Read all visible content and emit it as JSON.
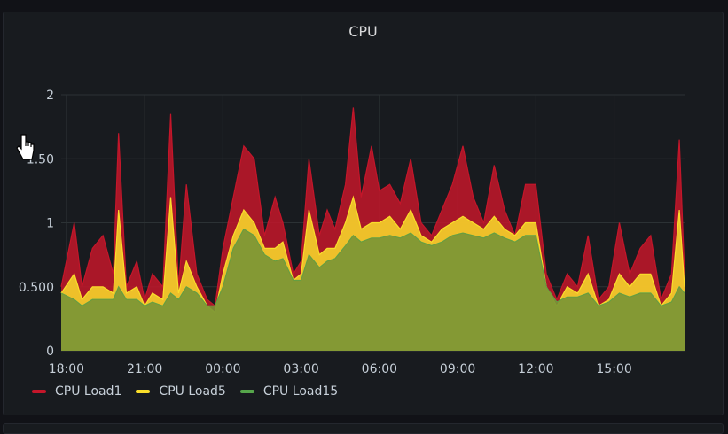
{
  "panel": {
    "title": "CPU"
  },
  "legend": [
    {
      "label": "CPU Load1",
      "color": "#c4162a"
    },
    {
      "label": "CPU Load5",
      "color": "#fade2a"
    },
    {
      "label": "CPU Load15",
      "color": "#56a64b"
    }
  ],
  "chart_data": {
    "type": "area",
    "title": "CPU",
    "xlabel": "",
    "ylabel": "",
    "x_ticks": [
      "18:00",
      "21:00",
      "00:00",
      "03:00",
      "06:00",
      "09:00",
      "12:00",
      "15:00"
    ],
    "y_ticks": [
      "0",
      "0.500",
      "1",
      "1.50",
      "2"
    ],
    "ylim": [
      0,
      2
    ],
    "x_range_hours": [
      -0.2,
      23.7
    ],
    "grid": true,
    "legend_position": "bottom-left",
    "series": [
      {
        "name": "CPU Load1",
        "color": "#c4162a",
        "x_hours": [
          -0.2,
          0.3,
          0.6,
          1.0,
          1.4,
          1.8,
          2.0,
          2.3,
          2.7,
          3.0,
          3.3,
          3.7,
          4.0,
          4.3,
          4.6,
          5.0,
          5.4,
          5.7,
          6.0,
          6.4,
          6.8,
          7.2,
          7.6,
          8.0,
          8.3,
          8.7,
          9.0,
          9.3,
          9.7,
          10.0,
          10.3,
          10.7,
          11.0,
          11.3,
          11.7,
          12.0,
          12.4,
          12.8,
          13.2,
          13.6,
          14.0,
          14.4,
          14.8,
          15.2,
          15.6,
          16.0,
          16.4,
          16.8,
          17.2,
          17.6,
          18.0,
          18.4,
          18.8,
          19.2,
          19.6,
          20.0,
          20.4,
          20.8,
          21.2,
          21.6,
          22.0,
          22.4,
          22.8,
          23.2,
          23.5,
          23.7
        ],
        "values": [
          0.5,
          1.0,
          0.5,
          0.8,
          0.9,
          0.6,
          1.7,
          0.5,
          0.7,
          0.4,
          0.6,
          0.5,
          1.85,
          0.5,
          1.3,
          0.6,
          0.4,
          0.35,
          0.8,
          1.2,
          1.6,
          1.5,
          0.9,
          1.2,
          1.0,
          0.6,
          0.7,
          1.5,
          0.9,
          1.1,
          0.95,
          1.3,
          1.9,
          1.2,
          1.6,
          1.25,
          1.3,
          1.15,
          1.5,
          1.0,
          0.9,
          1.1,
          1.3,
          1.6,
          1.2,
          1.0,
          1.45,
          1.1,
          0.9,
          1.3,
          1.3,
          0.6,
          0.4,
          0.6,
          0.5,
          0.9,
          0.4,
          0.5,
          1.0,
          0.6,
          0.8,
          0.9,
          0.4,
          0.6,
          1.65,
          0.6
        ]
      },
      {
        "name": "CPU Load5",
        "color": "#fade2a",
        "x_hours": [
          -0.2,
          0.3,
          0.6,
          1.0,
          1.4,
          1.8,
          2.0,
          2.3,
          2.7,
          3.0,
          3.3,
          3.7,
          4.0,
          4.3,
          4.6,
          5.0,
          5.4,
          5.7,
          6.0,
          6.4,
          6.8,
          7.2,
          7.6,
          8.0,
          8.3,
          8.7,
          9.0,
          9.3,
          9.7,
          10.0,
          10.3,
          10.7,
          11.0,
          11.3,
          11.7,
          12.0,
          12.4,
          12.8,
          13.2,
          13.6,
          14.0,
          14.4,
          14.8,
          15.2,
          15.6,
          16.0,
          16.4,
          16.8,
          17.2,
          17.6,
          18.0,
          18.4,
          18.8,
          19.2,
          19.6,
          20.0,
          20.4,
          20.8,
          21.2,
          21.6,
          22.0,
          22.4,
          22.8,
          23.2,
          23.5,
          23.7
        ],
        "values": [
          0.45,
          0.6,
          0.4,
          0.5,
          0.5,
          0.45,
          1.1,
          0.45,
          0.5,
          0.35,
          0.45,
          0.4,
          1.2,
          0.45,
          0.7,
          0.5,
          0.35,
          0.3,
          0.6,
          0.9,
          1.1,
          1.0,
          0.8,
          0.8,
          0.85,
          0.55,
          0.6,
          1.1,
          0.75,
          0.8,
          0.8,
          1.0,
          1.2,
          0.95,
          1.0,
          1.0,
          1.05,
          0.95,
          1.1,
          0.9,
          0.85,
          0.95,
          1.0,
          1.05,
          1.0,
          0.95,
          1.05,
          0.95,
          0.9,
          1.0,
          1.0,
          0.5,
          0.35,
          0.5,
          0.45,
          0.6,
          0.35,
          0.4,
          0.6,
          0.5,
          0.6,
          0.6,
          0.35,
          0.45,
          1.1,
          0.5
        ]
      },
      {
        "name": "CPU Load15",
        "color": "#56a64b",
        "x_hours": [
          -0.2,
          0.3,
          0.6,
          1.0,
          1.4,
          1.8,
          2.0,
          2.3,
          2.7,
          3.0,
          3.3,
          3.7,
          4.0,
          4.3,
          4.6,
          5.0,
          5.4,
          5.7,
          6.0,
          6.4,
          6.8,
          7.2,
          7.6,
          8.0,
          8.3,
          8.7,
          9.0,
          9.3,
          9.7,
          10.0,
          10.3,
          10.7,
          11.0,
          11.3,
          11.7,
          12.0,
          12.4,
          12.8,
          13.2,
          13.6,
          14.0,
          14.4,
          14.8,
          15.2,
          15.6,
          16.0,
          16.4,
          16.8,
          17.2,
          17.6,
          18.0,
          18.4,
          18.8,
          19.2,
          19.6,
          20.0,
          20.4,
          20.8,
          21.2,
          21.6,
          22.0,
          22.4,
          22.8,
          23.2,
          23.5,
          23.7
        ],
        "values": [
          0.45,
          0.4,
          0.35,
          0.4,
          0.4,
          0.4,
          0.5,
          0.4,
          0.4,
          0.35,
          0.38,
          0.35,
          0.45,
          0.4,
          0.5,
          0.45,
          0.35,
          0.35,
          0.5,
          0.8,
          0.95,
          0.9,
          0.75,
          0.7,
          0.72,
          0.55,
          0.55,
          0.75,
          0.65,
          0.7,
          0.72,
          0.82,
          0.9,
          0.85,
          0.88,
          0.88,
          0.9,
          0.88,
          0.92,
          0.85,
          0.82,
          0.85,
          0.9,
          0.92,
          0.9,
          0.88,
          0.92,
          0.88,
          0.85,
          0.9,
          0.9,
          0.5,
          0.38,
          0.42,
          0.42,
          0.45,
          0.35,
          0.38,
          0.45,
          0.42,
          0.45,
          0.45,
          0.35,
          0.38,
          0.5,
          0.45
        ]
      }
    ]
  }
}
